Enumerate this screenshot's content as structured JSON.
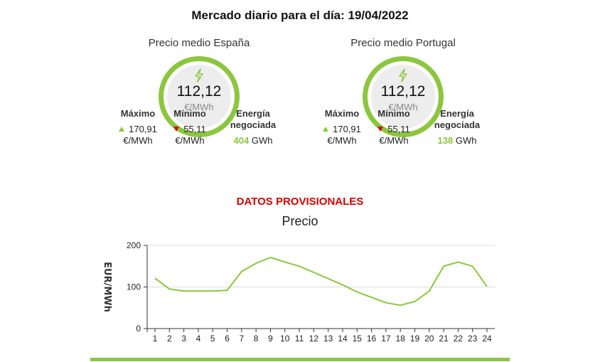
{
  "header": {
    "title": "Mercado diario para el día: 19/04/2022"
  },
  "spain": {
    "title": "Precio medio España",
    "price": "112,12",
    "unit": "€/MWh",
    "max_label": "Máximo",
    "max_value": "170,91",
    "max_unit": "€/MWh",
    "min_label": "Mínimo",
    "min_value": "55,11",
    "min_unit": "€/MWh",
    "energy_label_1": "Energía",
    "energy_label_2": "negociada",
    "energy_value": "404",
    "energy_unit": "GWh"
  },
  "portugal": {
    "title": "Precio medio Portugal",
    "price": "112,12",
    "unit": "€/MWh",
    "max_label": "Máximo",
    "max_value": "170,91",
    "max_unit": "€/MWh",
    "min_label": "Mínimo",
    "min_value": "55,11",
    "min_unit": "€/MWh",
    "energy_label_1": "Energía",
    "energy_label_2": "negociada",
    "energy_value": "138",
    "energy_unit": "GWh"
  },
  "notice": "DATOS PROVISIONALES",
  "colors": {
    "accent": "#8cc63f",
    "down": "#cc0000",
    "notice": "#d40000"
  },
  "icons": {
    "gauge": "lightning-bolt-icon"
  },
  "chart_data": {
    "type": "line",
    "title": "Precio",
    "ylabel": "EUR/MWh",
    "xlabel": "",
    "ylim": [
      0,
      200
    ],
    "yticks": [
      0,
      100,
      200
    ],
    "grid": true,
    "x": [
      1,
      2,
      3,
      4,
      5,
      6,
      7,
      8,
      9,
      10,
      11,
      12,
      13,
      14,
      15,
      16,
      17,
      18,
      19,
      20,
      21,
      22,
      23,
      24
    ],
    "series": [
      {
        "color": "#8cc63f",
        "values": [
          121,
          95,
          90,
          90,
          90,
          92,
          137,
          157,
          171,
          160,
          150,
          135,
          120,
          105,
          88,
          75,
          62,
          56,
          65,
          90,
          150,
          160,
          150,
          101
        ]
      }
    ]
  }
}
